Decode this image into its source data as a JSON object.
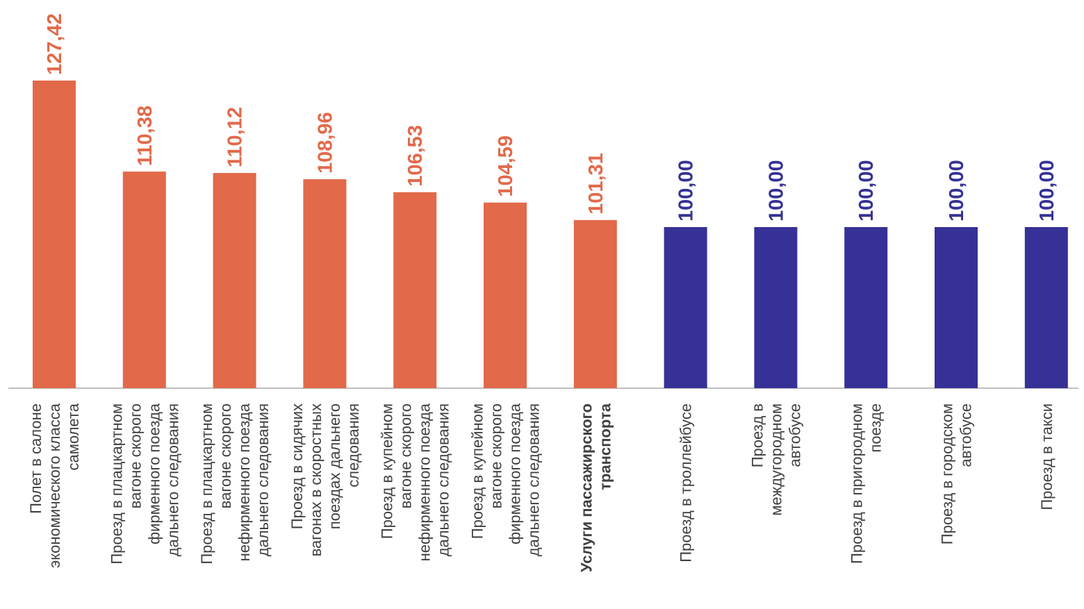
{
  "chart_data": {
    "type": "bar",
    "title": "",
    "xlabel": "",
    "ylabel": "",
    "ylim": [
      0,
      127.42
    ],
    "grid": false,
    "legend": "none",
    "colors": {
      "orange": "#E2694A",
      "navy": "#353196",
      "axis": "#BFBFBF",
      "label_text": "#404040"
    },
    "categories": [
      [
        "Полет в салоне",
        "экономического класса",
        "самолета"
      ],
      [
        "Проезд в плацкартном",
        "вагоне скорого",
        "фирменного поезда",
        "дальнего следования"
      ],
      [
        "Проезд в плацкартном",
        "вагоне скорого",
        "нефирменного поезда",
        "дальнего следования"
      ],
      [
        "Проезд в сидячих",
        "вагонах в скоростных",
        "поездах дальнего",
        "следования"
      ],
      [
        "Проезд в купейном",
        "вагоне скорого",
        "нефирменного поезда",
        "дальнего следования"
      ],
      [
        "Проезд в купейном",
        "вагоне скорого",
        "фирменного поезда",
        "дальнего следования"
      ],
      [
        "Услуги пассажирского",
        "транспорта"
      ],
      [
        "Проезд в троллейбусе"
      ],
      [
        "Проезд в",
        "междугородном",
        "автобусе"
      ],
      [
        "Проезд в пригородном",
        "поезде"
      ],
      [
        "Проезд в городском",
        "автобусе"
      ],
      [
        "Проезд в такси"
      ]
    ],
    "values": [
      127.42,
      110.38,
      110.12,
      108.96,
      106.53,
      104.59,
      101.31,
      100.0,
      100.0,
      100.0,
      100.0,
      100.0
    ],
    "value_labels": [
      "127,42",
      "110,38",
      "110,12",
      "108,96",
      "106,53",
      "104,59",
      "101,31",
      "100,00",
      "100,00",
      "100,00",
      "100,00",
      "100,00"
    ],
    "bar_colors": [
      "orange",
      "orange",
      "orange",
      "orange",
      "orange",
      "orange",
      "orange",
      "navy",
      "navy",
      "navy",
      "navy",
      "navy"
    ],
    "bold_categories": [
      6
    ]
  }
}
